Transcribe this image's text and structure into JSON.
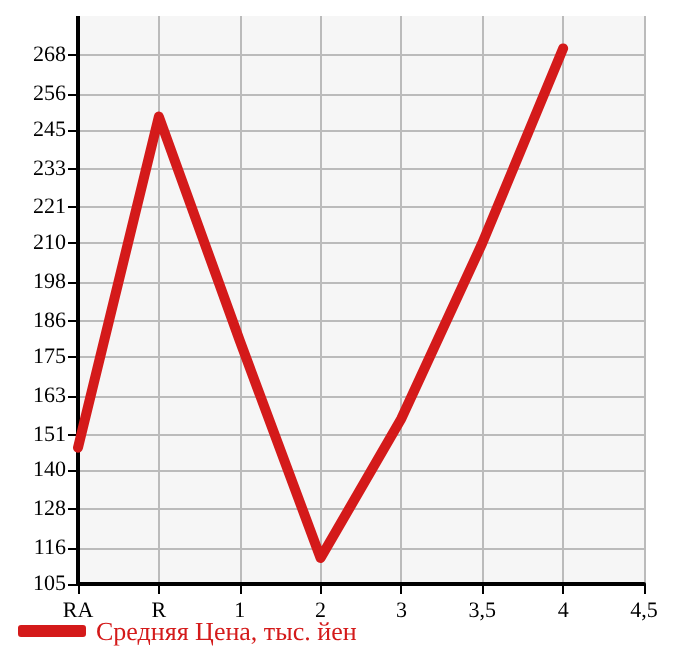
{
  "chart_data": {
    "type": "line",
    "categories": [
      "RA",
      "R",
      "1",
      "2",
      "3",
      "3,5",
      "4",
      "4,5"
    ],
    "series": [
      {
        "name": "Средняя Цена, тыс. йен",
        "color": "#d41a1a",
        "values": [
          147,
          249,
          180,
          113,
          156,
          210,
          270,
          null
        ]
      }
    ],
    "ylim": [
      105,
      280
    ],
    "yticks": [
      105,
      116,
      128,
      140,
      151,
      163,
      175,
      186,
      198,
      210,
      221,
      233,
      245,
      256,
      268
    ],
    "grid": true,
    "legend": "bottom left",
    "marker": "none",
    "line_style": "solid"
  }
}
